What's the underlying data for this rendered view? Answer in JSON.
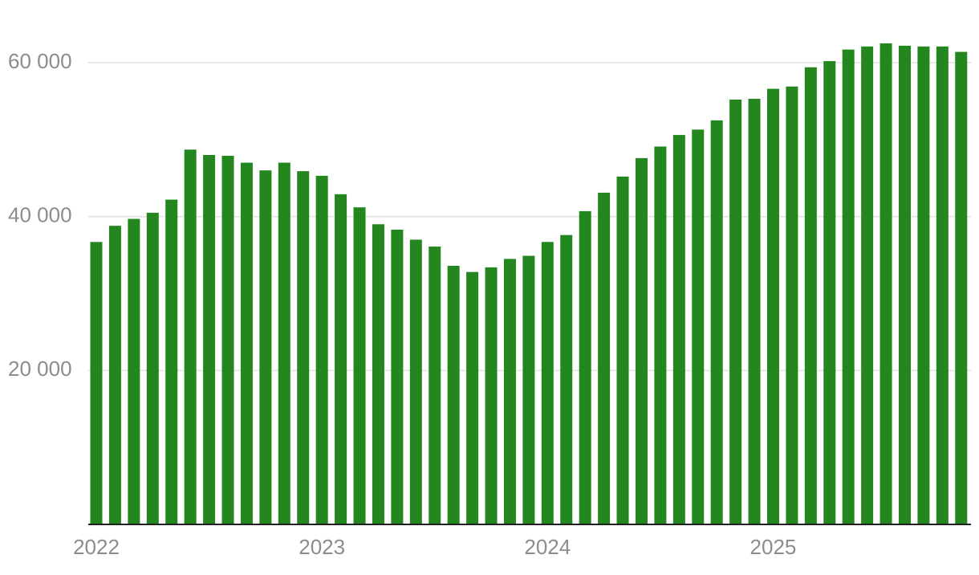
{
  "chart_data": {
    "type": "bar",
    "categories": [
      "2022",
      null,
      null,
      null,
      null,
      null,
      null,
      null,
      null,
      null,
      null,
      null,
      "2023",
      null,
      null,
      null,
      null,
      null,
      null,
      null,
      null,
      null,
      null,
      null,
      "2024",
      null,
      null,
      null,
      null,
      null,
      null,
      null,
      null,
      null,
      null,
      null,
      "2025",
      null,
      null,
      null,
      null,
      null,
      null,
      null,
      null,
      null,
      null
    ],
    "values": [
      36700,
      38800,
      39700,
      40500,
      42200,
      48700,
      48000,
      47900,
      47000,
      46000,
      47000,
      45900,
      45300,
      42900,
      41200,
      39000,
      38300,
      37000,
      36100,
      33600,
      32800,
      33400,
      34500,
      34900,
      36700,
      37600,
      40700,
      43100,
      45200,
      47600,
      49100,
      50600,
      51300,
      52500,
      55200,
      55300,
      56600,
      56900,
      59400,
      60200,
      61700,
      62100,
      62500,
      62200,
      62100,
      62100,
      61400
    ],
    "color": "#23861e",
    "ylim": [
      0,
      64000
    ],
    "yticks": [
      {
        "value": 20000,
        "label": "20 000"
      },
      {
        "value": 40000,
        "label": "40 000"
      },
      {
        "value": 60000,
        "label": "60 000"
      }
    ],
    "grid": true
  }
}
